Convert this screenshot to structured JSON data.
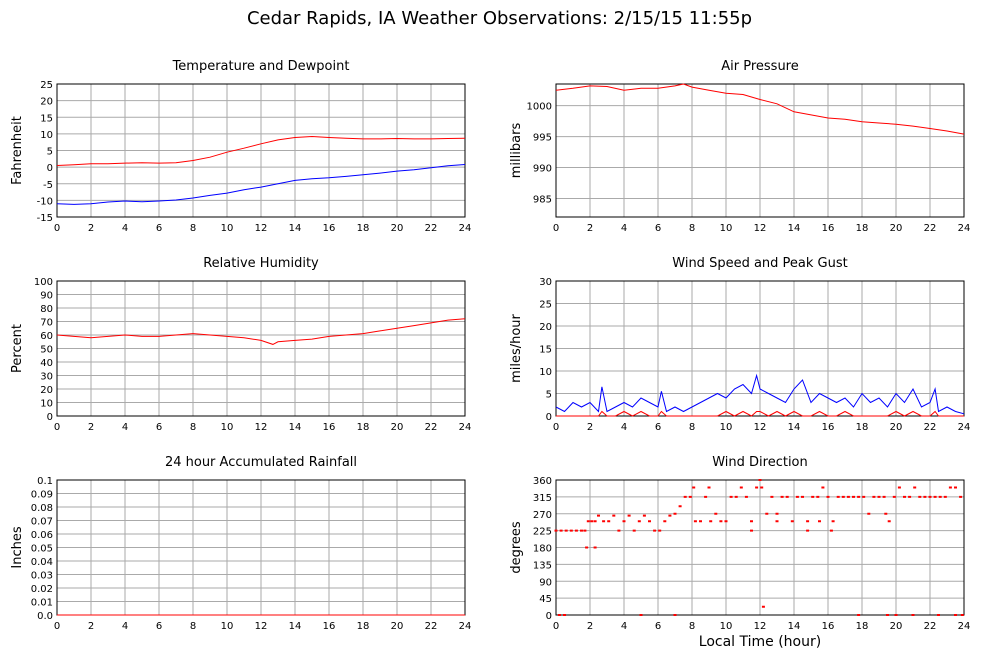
{
  "page": {
    "title": "Cedar Rapids, IA Weather Observations: 2/15/15 11:55p",
    "x_axis_label": "Local Time (hour)"
  },
  "chart_data": [
    {
      "id": "temp",
      "type": "line",
      "title": "Temperature and Dewpoint",
      "xlabel": "",
      "ylabel": "Fahrenheit",
      "xlim": [
        0,
        24
      ],
      "ylim": [
        -15,
        25
      ],
      "xticks": [
        0,
        2,
        4,
        6,
        8,
        10,
        12,
        14,
        16,
        18,
        20,
        22,
        24
      ],
      "yticks": [
        -15,
        -10,
        -5,
        0,
        5,
        10,
        15,
        20,
        25
      ],
      "grid": true,
      "series": [
        {
          "color": "#ff0000",
          "x": [
            0,
            1,
            2,
            3,
            4,
            5,
            6,
            7,
            8,
            9,
            10,
            11,
            12,
            13,
            14,
            15,
            16,
            17,
            18,
            19,
            20,
            21,
            22,
            23,
            24
          ],
          "y": [
            0.5,
            0.7,
            1.0,
            1.0,
            1.2,
            1.3,
            1.2,
            1.3,
            2.0,
            3.0,
            4.5,
            5.7,
            7.0,
            8.2,
            8.9,
            9.2,
            8.9,
            8.7,
            8.5,
            8.5,
            8.6,
            8.5,
            8.5,
            8.6,
            8.7
          ]
        },
        {
          "color": "#0000ff",
          "x": [
            0,
            1,
            2,
            3,
            4,
            5,
            6,
            7,
            8,
            9,
            10,
            11,
            12,
            13,
            14,
            15,
            16,
            17,
            18,
            19,
            20,
            21,
            22,
            23,
            24
          ],
          "y": [
            -11,
            -11.2,
            -11,
            -10.5,
            -10.2,
            -10.4,
            -10.2,
            -9.9,
            -9.3,
            -8.5,
            -7.8,
            -6.8,
            -6.0,
            -5.0,
            -4.0,
            -3.5,
            -3.2,
            -2.8,
            -2.3,
            -1.8,
            -1.2,
            -0.8,
            -0.2,
            0.4,
            0.8
          ]
        }
      ]
    },
    {
      "id": "pressure",
      "type": "line",
      "title": "Air Pressure",
      "xlabel": "",
      "ylabel": "millibars",
      "xlim": [
        0,
        24
      ],
      "ylim": [
        982,
        1003.5
      ],
      "xticks": [
        0,
        2,
        4,
        6,
        8,
        10,
        12,
        14,
        16,
        18,
        20,
        22,
        24
      ],
      "yticks": [
        985,
        990,
        995,
        1000
      ],
      "grid": true,
      "series": [
        {
          "color": "#ff0000",
          "x": [
            0,
            1,
            2,
            3,
            4,
            5,
            6,
            7,
            7.5,
            8,
            9,
            10,
            11,
            12,
            13,
            14,
            15,
            16,
            17,
            18,
            19,
            20,
            21,
            22,
            23,
            24
          ],
          "y": [
            1002.5,
            1002.8,
            1003.2,
            1003.1,
            1002.5,
            1002.8,
            1002.8,
            1003.2,
            1003.5,
            1003.0,
            1002.5,
            1002.0,
            1001.8,
            1001.0,
            1000.3,
            999.0,
            998.5,
            998.0,
            997.8,
            997.4,
            997.2,
            997.0,
            996.7,
            996.3,
            995.9,
            995.4
          ]
        }
      ]
    },
    {
      "id": "humidity",
      "type": "line",
      "title": "Relative Humidity",
      "xlabel": "",
      "ylabel": "Percent",
      "xlim": [
        0,
        24
      ],
      "ylim": [
        0,
        100
      ],
      "xticks": [
        0,
        2,
        4,
        6,
        8,
        10,
        12,
        14,
        16,
        18,
        20,
        22,
        24
      ],
      "yticks": [
        0,
        10,
        20,
        30,
        40,
        50,
        60,
        70,
        80,
        90,
        100
      ],
      "grid": true,
      "series": [
        {
          "color": "#ff0000",
          "x": [
            0,
            1,
            2,
            3,
            4,
            5,
            6,
            7,
            8,
            9,
            10,
            11,
            12,
            12.7,
            13,
            14,
            15,
            16,
            17,
            18,
            19,
            20,
            21,
            22,
            23,
            24
          ],
          "y": [
            60,
            59,
            58,
            59,
            60,
            59,
            59,
            60,
            61,
            60,
            59,
            58,
            56,
            53,
            55,
            56,
            57,
            59,
            60,
            61,
            63,
            65,
            67,
            69,
            71,
            72
          ]
        }
      ]
    },
    {
      "id": "wind",
      "type": "line",
      "title": "Wind Speed and Peak Gust",
      "xlabel": "",
      "ylabel": "miles/hour",
      "xlim": [
        0,
        24
      ],
      "ylim": [
        0,
        30
      ],
      "xticks": [
        0,
        2,
        4,
        6,
        8,
        10,
        12,
        14,
        16,
        18,
        20,
        22,
        24
      ],
      "yticks": [
        0,
        5,
        10,
        15,
        20,
        25,
        30
      ],
      "grid": true,
      "series": [
        {
          "color": "#0000ff",
          "x": [
            0,
            0.5,
            1,
            1.5,
            2,
            2.5,
            2.7,
            3,
            3.5,
            4,
            4.5,
            5,
            5.5,
            6,
            6.2,
            6.5,
            7,
            7.5,
            8,
            8.5,
            9,
            9.5,
            10,
            10.5,
            11,
            11.5,
            11.8,
            12,
            12.5,
            13,
            13.5,
            14,
            14.5,
            15,
            15.5,
            16,
            16.5,
            17,
            17.5,
            18,
            18.5,
            19,
            19.5,
            20,
            20.5,
            21,
            21.5,
            22,
            22.3,
            22.5,
            23,
            23.5,
            24
          ],
          "y": [
            2,
            1,
            3,
            2,
            3,
            1,
            6.5,
            1,
            2,
            3,
            2,
            4,
            3,
            2,
            5.5,
            1,
            2,
            1,
            2,
            3,
            4,
            5,
            4,
            6,
            7,
            5,
            9,
            6,
            5,
            4,
            3,
            6,
            8,
            3,
            5,
            4,
            3,
            4,
            2,
            5,
            3,
            4,
            2,
            5,
            3,
            6,
            2,
            3,
            6,
            1,
            2,
            1,
            0.5
          ]
        },
        {
          "color": "#ff0000",
          "x": [
            0,
            0.5,
            1,
            1.5,
            2,
            2.5,
            2.7,
            3,
            3.5,
            4,
            4.5,
            5,
            5.5,
            6,
            6.2,
            6.5,
            7,
            7.5,
            8,
            8.5,
            9,
            9.5,
            10,
            10.5,
            11,
            11.5,
            11.8,
            12,
            12.5,
            13,
            13.5,
            14,
            14.5,
            15,
            15.5,
            16,
            16.5,
            17,
            17.5,
            18,
            18.5,
            19,
            19.5,
            20,
            20.5,
            21,
            21.5,
            22,
            22.3,
            22.5,
            23,
            23.5,
            24
          ],
          "y": [
            0,
            0,
            0,
            0,
            0,
            0,
            1,
            0,
            0,
            1,
            0,
            1,
            0,
            0,
            1,
            0,
            0,
            0,
            0,
            0,
            0,
            0,
            1,
            0,
            1,
            0,
            1,
            1,
            0,
            1,
            0,
            1,
            0,
            0,
            1,
            0,
            0,
            1,
            0,
            0,
            0,
            0,
            0,
            1,
            0,
            1,
            0,
            0,
            1,
            0,
            0,
            0,
            0
          ]
        }
      ]
    },
    {
      "id": "rain",
      "type": "line",
      "title": "24 hour Accumulated Rainfall",
      "xlabel": "",
      "ylabel": "Inches",
      "xlim": [
        0,
        24
      ],
      "ylim": [
        0,
        0.1
      ],
      "xticks": [
        0,
        2,
        4,
        6,
        8,
        10,
        12,
        14,
        16,
        18,
        20,
        22,
        24
      ],
      "yticks": [
        0.0,
        0.01,
        0.02,
        0.03,
        0.04,
        0.05,
        0.06,
        0.07,
        0.08,
        0.09,
        0.1
      ],
      "ytick_labels": [
        "0.0",
        "0.01",
        "0.02",
        "0.03",
        "0.04",
        "0.05",
        "0.06",
        "0.07",
        "0.08",
        "0.09",
        "0.1"
      ],
      "grid": true,
      "series": [
        {
          "color": "#ff0000",
          "x": [
            0,
            24
          ],
          "y": [
            0,
            0
          ]
        }
      ]
    },
    {
      "id": "direction",
      "type": "scatter",
      "title": "Wind Direction",
      "xlabel": "",
      "ylabel": "degrees",
      "xlim": [
        0,
        24
      ],
      "ylim": [
        0,
        360
      ],
      "xticks": [
        0,
        2,
        4,
        6,
        8,
        10,
        12,
        14,
        16,
        18,
        20,
        22,
        24
      ],
      "yticks": [
        0,
        45,
        90,
        135,
        180,
        225,
        270,
        315,
        360
      ],
      "grid": true,
      "series": [
        {
          "color": "#ff0000",
          "x": [
            0,
            0.3,
            0.6,
            0.9,
            1.2,
            1.5,
            1.7,
            1.9,
            2.1,
            2.3,
            2.5,
            2.8,
            3.1,
            3.4,
            3.7,
            4.0,
            4.3,
            4.6,
            4.9,
            5.2,
            5.5,
            5.8,
            6.1,
            6.4,
            6.7,
            7.0,
            7.3,
            7.6,
            7.9,
            8.2,
            8.5,
            8.8,
            9.1,
            9.4,
            9.7,
            10.0,
            10.3,
            10.6,
            10.9,
            11.2,
            11.5,
            11.8,
            12.1,
            12.4,
            12.7,
            13.0,
            13.3,
            13.6,
            13.9,
            14.2,
            14.5,
            14.8,
            15.1,
            15.4,
            15.7,
            16.0,
            16.3,
            16.6,
            16.9,
            17.2,
            17.5,
            17.8,
            18.1,
            18.4,
            18.7,
            19.0,
            19.3,
            19.6,
            19.9,
            20.2,
            20.5,
            20.8,
            21.1,
            21.4,
            21.7,
            22.0,
            22.3,
            22.6,
            22.9,
            23.2,
            23.5,
            23.8,
            0.2,
            0.5,
            5.0,
            7.0,
            12.2,
            17.8,
            19.5,
            20.0,
            21.0,
            22.5,
            23.5,
            23.9,
            1.8,
            2.3,
            8.1,
            9.0,
            11.5,
            13.0,
            14.8,
            15.5,
            16.2,
            19.4,
            12.0
          ],
          "y": [
            225,
            225,
            225,
            225,
            225,
            225,
            225,
            250,
            250,
            250,
            265,
            250,
            250,
            265,
            225,
            250,
            265,
            225,
            250,
            265,
            250,
            225,
            225,
            250,
            265,
            270,
            290,
            315,
            315,
            250,
            250,
            315,
            250,
            270,
            250,
            250,
            315,
            315,
            340,
            315,
            250,
            340,
            340,
            270,
            315,
            250,
            315,
            315,
            250,
            315,
            315,
            250,
            315,
            315,
            340,
            315,
            250,
            315,
            315,
            315,
            315,
            315,
            315,
            270,
            315,
            315,
            315,
            250,
            315,
            340,
            315,
            315,
            340,
            315,
            315,
            315,
            315,
            315,
            315,
            340,
            340,
            315,
            0,
            0,
            0,
            0,
            22,
            0,
            0,
            0,
            0,
            0,
            0,
            0,
            180,
            180,
            340,
            340,
            225,
            270,
            225,
            250,
            225,
            270,
            360
          ]
        }
      ]
    }
  ]
}
